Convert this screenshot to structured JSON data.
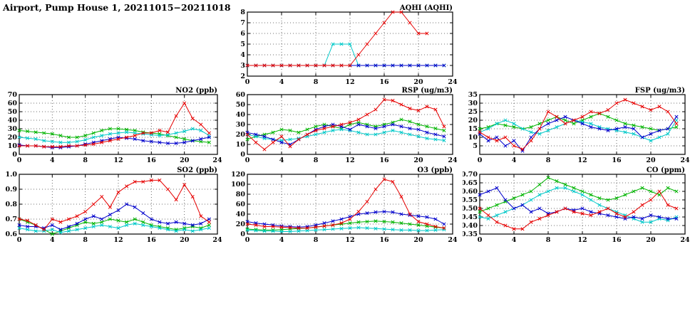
{
  "title": "Airport, Pump House 1, 20211015−20211018",
  "chart_data": [
    {
      "id": "aqhi",
      "type": "line",
      "title": "AQHI (AQHI)",
      "xlim": [
        0,
        24
      ],
      "xticks": [
        0,
        4,
        8,
        12,
        16,
        20,
        24
      ],
      "ylim": [
        2,
        8
      ],
      "yticks": [
        2,
        3,
        4,
        5,
        6,
        7,
        8
      ],
      "ydecimals": 0,
      "grid": true,
      "legend": "none",
      "series": [
        {
          "name": "green",
          "color": "#00b400",
          "values": [
            3,
            3,
            3,
            3,
            3,
            3,
            3,
            3,
            3,
            3,
            3,
            3,
            3,
            3,
            3,
            3,
            3,
            3,
            3,
            3,
            3,
            3,
            3,
            3
          ]
        },
        {
          "name": "cyan",
          "color": "#00c8c8",
          "values": [
            3,
            3,
            3,
            3,
            3,
            3,
            3,
            3,
            3,
            3,
            5,
            5,
            5,
            3,
            3,
            3,
            3,
            3,
            3,
            3,
            3,
            3,
            3,
            3
          ]
        },
        {
          "name": "blue",
          "color": "#0000cc",
          "values": [
            3,
            3,
            3,
            3,
            3,
            3,
            3,
            3,
            3,
            3,
            3,
            3,
            3,
            3,
            3,
            3,
            3,
            3,
            3,
            3,
            3,
            3,
            3,
            3
          ]
        },
        {
          "name": "red",
          "color": "#e60000",
          "values": [
            3,
            3,
            3,
            3,
            3,
            3,
            3,
            3,
            3,
            3,
            3,
            3,
            3,
            4,
            5,
            6,
            7,
            8,
            8,
            7,
            6,
            6,
            null,
            null
          ]
        }
      ]
    },
    {
      "id": "no2",
      "type": "line",
      "title": "NO2 (ppb)",
      "xlim": [
        0,
        24
      ],
      "xticks": [
        0,
        4,
        8,
        12,
        16,
        20,
        24
      ],
      "ylim": [
        0,
        70
      ],
      "yticks": [
        0,
        10,
        20,
        30,
        40,
        50,
        60,
        70
      ],
      "ydecimals": 0,
      "grid": true,
      "legend": "none",
      "series": [
        {
          "name": "green",
          "color": "#00b400",
          "values": [
            28,
            27,
            26,
            25,
            24,
            22,
            20,
            20,
            22,
            25,
            28,
            30,
            30,
            29,
            28,
            26,
            25,
            24,
            22,
            20,
            18,
            16,
            15,
            14
          ]
        },
        {
          "name": "cyan",
          "color": "#00c8c8",
          "values": [
            20,
            19,
            18,
            16,
            15,
            14,
            14,
            15,
            17,
            20,
            22,
            24,
            25,
            26,
            25,
            24,
            23,
            22,
            23,
            25,
            27,
            30,
            28,
            22
          ]
        },
        {
          "name": "blue",
          "color": "#0000cc",
          "values": [
            11,
            10,
            10,
            9,
            8,
            8,
            9,
            10,
            12,
            14,
            16,
            18,
            20,
            19,
            18,
            16,
            15,
            14,
            13,
            13,
            14,
            16,
            18,
            20
          ]
        },
        {
          "name": "red",
          "color": "#e60000",
          "values": [
            10,
            10,
            10,
            9,
            9,
            9,
            10,
            10,
            11,
            12,
            14,
            16,
            18,
            20,
            22,
            25,
            25,
            28,
            26,
            45,
            60,
            42,
            35,
            25
          ]
        }
      ]
    },
    {
      "id": "rsp",
      "type": "line",
      "title": "RSP (ug/m3)",
      "xlim": [
        0,
        24
      ],
      "xticks": [
        0,
        4,
        8,
        12,
        16,
        20,
        24
      ],
      "ylim": [
        0,
        60
      ],
      "yticks": [
        0,
        10,
        20,
        30,
        40,
        50,
        60
      ],
      "ydecimals": 0,
      "grid": true,
      "legend": "none",
      "series": [
        {
          "name": "green",
          "color": "#00b400",
          "values": [
            15,
            18,
            20,
            22,
            25,
            24,
            22,
            25,
            28,
            30,
            28,
            26,
            30,
            32,
            30,
            28,
            30,
            32,
            35,
            33,
            30,
            28,
            26,
            24
          ]
        },
        {
          "name": "cyan",
          "color": "#00c8c8",
          "values": [
            20,
            18,
            16,
            15,
            14,
            15,
            16,
            18,
            20,
            22,
            24,
            25,
            24,
            22,
            20,
            20,
            22,
            24,
            22,
            20,
            18,
            16,
            15,
            14
          ]
        },
        {
          "name": "blue",
          "color": "#0000cc",
          "values": [
            22,
            20,
            18,
            15,
            12,
            10,
            15,
            20,
            25,
            28,
            30,
            28,
            25,
            30,
            28,
            26,
            28,
            30,
            28,
            26,
            25,
            22,
            20,
            18
          ]
        },
        {
          "name": "red",
          "color": "#e60000",
          "values": [
            20,
            12,
            5,
            12,
            18,
            8,
            15,
            20,
            24,
            26,
            28,
            30,
            32,
            35,
            40,
            45,
            55,
            54,
            50,
            46,
            44,
            48,
            45,
            28
          ]
        }
      ]
    },
    {
      "id": "fsp",
      "type": "line",
      "title": "FSP (ug/m3)",
      "xlim": [
        0,
        24
      ],
      "xticks": [
        0,
        4,
        8,
        12,
        16,
        20,
        24
      ],
      "ylim": [
        0,
        35
      ],
      "yticks": [
        5,
        10,
        15,
        20,
        25,
        30,
        35
      ],
      "ydecimals": 0,
      "grid": true,
      "legend": "none",
      "series": [
        {
          "name": "green",
          "color": "#00b400",
          "values": [
            15,
            16,
            18,
            17,
            16,
            15,
            16,
            18,
            20,
            22,
            20,
            18,
            20,
            22,
            24,
            22,
            20,
            18,
            17,
            16,
            15,
            14,
            15,
            16
          ]
        },
        {
          "name": "cyan",
          "color": "#00c8c8",
          "values": [
            13,
            15,
            18,
            20,
            18,
            15,
            13,
            12,
            14,
            16,
            18,
            20,
            19,
            18,
            16,
            15,
            14,
            13,
            12,
            10,
            8,
            10,
            12,
            20
          ]
        },
        {
          "name": "blue",
          "color": "#0000cc",
          "values": [
            12,
            8,
            10,
            5,
            8,
            2,
            10,
            15,
            18,
            20,
            22,
            20,
            18,
            16,
            15,
            14,
            15,
            16,
            15,
            10,
            12,
            14,
            15,
            22
          ]
        },
        {
          "name": "red",
          "color": "#e60000",
          "values": [
            13,
            10,
            8,
            10,
            5,
            3,
            8,
            15,
            25,
            22,
            18,
            20,
            22,
            25,
            24,
            26,
            30,
            32,
            30,
            28,
            26,
            28,
            25,
            18
          ]
        }
      ]
    },
    {
      "id": "so2",
      "type": "line",
      "title": "SO2 (ppb)",
      "xlim": [
        0,
        24
      ],
      "xticks": [
        0,
        4,
        8,
        12,
        16,
        20,
        24
      ],
      "ylim": [
        0.6,
        1.0
      ],
      "yticks": [
        0.6,
        0.7,
        0.8,
        0.9,
        1.0
      ],
      "ydecimals": 1,
      "grid": true,
      "legend": "none",
      "series": [
        {
          "name": "green",
          "color": "#00b400",
          "values": [
            0.7,
            0.68,
            0.66,
            0.63,
            0.6,
            0.62,
            0.64,
            0.66,
            0.68,
            0.67,
            0.68,
            0.7,
            0.69,
            0.68,
            0.7,
            0.68,
            0.66,
            0.65,
            0.64,
            0.63,
            0.64,
            0.65,
            0.64,
            0.66
          ]
        },
        {
          "name": "cyan",
          "color": "#00c8c8",
          "values": [
            0.64,
            0.63,
            0.62,
            0.62,
            0.63,
            0.61,
            0.62,
            0.63,
            0.64,
            0.65,
            0.66,
            0.65,
            0.64,
            0.66,
            0.67,
            0.66,
            0.65,
            0.64,
            0.63,
            0.62,
            0.63,
            0.62,
            0.63,
            0.64
          ]
        },
        {
          "name": "blue",
          "color": "#0000cc",
          "values": [
            0.66,
            0.65,
            0.65,
            0.64,
            0.66,
            0.63,
            0.65,
            0.67,
            0.7,
            0.72,
            0.7,
            0.73,
            0.76,
            0.8,
            0.78,
            0.74,
            0.7,
            0.68,
            0.67,
            0.68,
            0.67,
            0.66,
            0.67,
            0.7
          ]
        },
        {
          "name": "red",
          "color": "#e60000",
          "values": [
            0.7,
            0.69,
            0.66,
            0.63,
            0.7,
            0.68,
            0.7,
            0.72,
            0.75,
            0.8,
            0.85,
            0.78,
            0.88,
            0.92,
            0.95,
            0.95,
            0.96,
            0.96,
            0.9,
            0.83,
            0.93,
            0.85,
            0.72,
            0.68
          ]
        }
      ]
    },
    {
      "id": "o3",
      "type": "line",
      "title": "O3 (ppb)",
      "xlim": [
        0,
        24
      ],
      "xticks": [
        0,
        4,
        8,
        12,
        16,
        20,
        24
      ],
      "ylim": [
        0,
        120
      ],
      "yticks": [
        0,
        20,
        40,
        60,
        80,
        100,
        120
      ],
      "ydecimals": 0,
      "grid": true,
      "legend": "none",
      "series": [
        {
          "name": "green",
          "color": "#00b400",
          "values": [
            10,
            9,
            8,
            8,
            9,
            10,
            11,
            12,
            14,
            16,
            18,
            20,
            22,
            24,
            25,
            26,
            25,
            24,
            22,
            20,
            18,
            16,
            14,
            12
          ]
        },
        {
          "name": "cyan",
          "color": "#00c8c8",
          "values": [
            8,
            7,
            6,
            6,
            5,
            5,
            6,
            7,
            8,
            9,
            10,
            11,
            12,
            13,
            12,
            11,
            10,
            9,
            8,
            8,
            7,
            7,
            8,
            9
          ]
        },
        {
          "name": "blue",
          "color": "#0000cc",
          "values": [
            25,
            22,
            20,
            18,
            16,
            15,
            14,
            15,
            18,
            22,
            26,
            30,
            35,
            40,
            42,
            44,
            45,
            44,
            40,
            38,
            36,
            34,
            30,
            20
          ]
        },
        {
          "name": "red",
          "color": "#e60000",
          "values": [
            20,
            18,
            15,
            15,
            14,
            13,
            12,
            12,
            14,
            16,
            18,
            22,
            30,
            45,
            65,
            90,
            110,
            105,
            75,
            40,
            25,
            20,
            15,
            12
          ]
        }
      ]
    },
    {
      "id": "co",
      "type": "line",
      "title": "CO (ppm)",
      "xlim": [
        0,
        24
      ],
      "xticks": [
        0,
        4,
        8,
        12,
        16,
        20,
        24
      ],
      "ylim": [
        0.35,
        0.7
      ],
      "yticks": [
        0.35,
        0.4,
        0.45,
        0.5,
        0.55,
        0.6,
        0.65,
        0.7
      ],
      "ydecimals": 2,
      "grid": true,
      "legend": "none",
      "series": [
        {
          "name": "green",
          "color": "#00b400",
          "values": [
            0.48,
            0.5,
            0.52,
            0.54,
            0.56,
            0.58,
            0.6,
            0.64,
            0.68,
            0.66,
            0.64,
            0.62,
            0.6,
            0.58,
            0.56,
            0.55,
            0.56,
            0.58,
            0.6,
            0.62,
            0.6,
            0.58,
            0.62,
            0.6
          ]
        },
        {
          "name": "cyan",
          "color": "#00c8c8",
          "values": [
            0.45,
            0.44,
            0.46,
            0.48,
            0.5,
            0.52,
            0.55,
            0.58,
            0.6,
            0.62,
            0.62,
            0.6,
            0.58,
            0.55,
            0.52,
            0.5,
            0.48,
            0.46,
            0.44,
            0.42,
            0.42,
            0.44,
            0.43,
            0.45
          ]
        },
        {
          "name": "blue",
          "color": "#0000cc",
          "values": [
            0.58,
            0.6,
            0.62,
            0.55,
            0.5,
            0.52,
            0.48,
            0.5,
            0.47,
            0.48,
            0.5,
            0.49,
            0.5,
            0.48,
            0.47,
            0.46,
            0.45,
            0.44,
            0.45,
            0.44,
            0.46,
            0.45,
            0.44,
            0.44
          ]
        },
        {
          "name": "red",
          "color": "#e60000",
          "values": [
            0.5,
            0.46,
            0.42,
            0.4,
            0.38,
            0.38,
            0.42,
            0.44,
            0.46,
            0.48,
            0.5,
            0.48,
            0.47,
            0.46,
            0.48,
            0.5,
            0.47,
            0.45,
            0.48,
            0.52,
            0.55,
            0.6,
            0.52,
            0.5
          ]
        }
      ]
    }
  ]
}
